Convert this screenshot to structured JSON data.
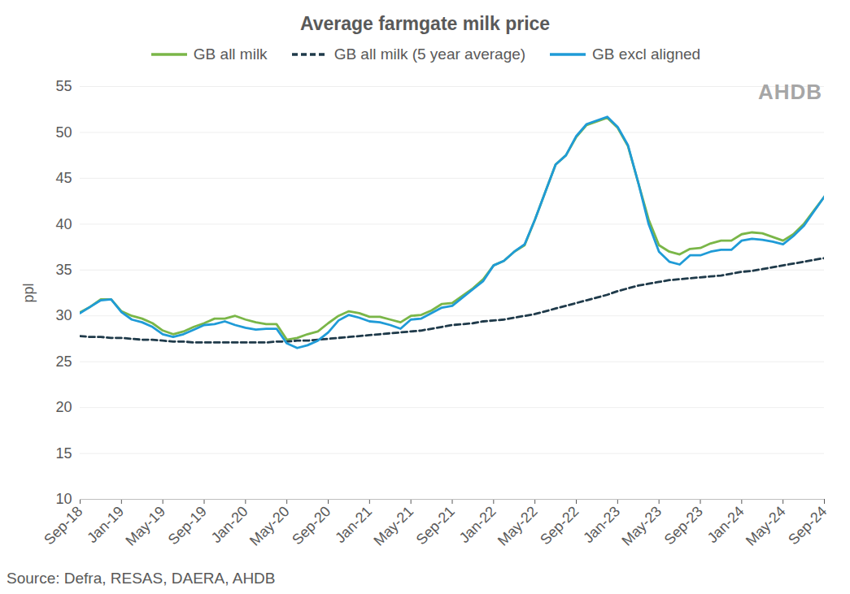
{
  "chart_data": {
    "type": "line",
    "title": "Average farmgate milk price",
    "y_label": "ppl",
    "source": "Source: Defra, RESAS, DAERA, AHDB",
    "annotation": "AHDB",
    "categories": [
      "Sep-18",
      null,
      null,
      null,
      "Jan-19",
      null,
      null,
      null,
      "May-19",
      null,
      null,
      null,
      "Sep-19",
      null,
      null,
      null,
      "Jan-20",
      null,
      null,
      null,
      "May-20",
      null,
      null,
      null,
      "Sep-20",
      null,
      null,
      null,
      "Jan-21",
      null,
      null,
      null,
      "May-21",
      null,
      null,
      null,
      "Sep-21",
      null,
      null,
      null,
      "Jan-22",
      null,
      null,
      null,
      "May-22",
      null,
      null,
      null,
      "Sep-22",
      null,
      null,
      null,
      "Jan-23",
      null,
      null,
      null,
      "May-23",
      null,
      null,
      null,
      "Sep-23",
      null,
      null,
      null,
      "Jan-24",
      null,
      null,
      null,
      "May-24",
      null,
      null,
      null,
      "Sep-24"
    ],
    "series": [
      {
        "name": "GB all milk",
        "color": "#7ab648",
        "line_style": "solid",
        "values": [
          30.4,
          31.0,
          31.8,
          31.8,
          30.5,
          30.0,
          29.7,
          29.2,
          28.4,
          28.0,
          28.3,
          28.8,
          29.2,
          29.7,
          29.7,
          30.0,
          29.6,
          29.3,
          29.1,
          29.1,
          27.4,
          27.6,
          28.0,
          28.3,
          29.2,
          30.0,
          30.5,
          30.3,
          29.9,
          29.9,
          29.6,
          29.3,
          30.0,
          30.1,
          30.6,
          31.3,
          31.4,
          32.2,
          33.0,
          34.0,
          35.5,
          36.0,
          37.0,
          37.7,
          40.5,
          43.5,
          46.5,
          47.5,
          49.5,
          50.8,
          51.2,
          51.6,
          50.5,
          48.5,
          44.5,
          40.5,
          37.7,
          37.0,
          36.7,
          37.3,
          37.4,
          37.9,
          38.2,
          38.2,
          38.9,
          39.1,
          39.0,
          38.6,
          38.2,
          38.9,
          40.0,
          41.5,
          43.0
        ]
      },
      {
        "name": "GB all milk (5 year average)",
        "color": "#1f3a4a",
        "line_style": "dashed",
        "values": [
          27.8,
          27.7,
          27.7,
          27.6,
          27.6,
          27.5,
          27.4,
          27.4,
          27.3,
          27.2,
          27.2,
          27.1,
          27.1,
          27.1,
          27.1,
          27.1,
          27.1,
          27.1,
          27.1,
          27.2,
          27.2,
          27.3,
          27.3,
          27.4,
          27.5,
          27.6,
          27.7,
          27.8,
          27.9,
          28.0,
          28.1,
          28.2,
          28.3,
          28.4,
          28.6,
          28.8,
          29.0,
          29.1,
          29.2,
          29.4,
          29.5,
          29.6,
          29.8,
          30.0,
          30.2,
          30.5,
          30.8,
          31.1,
          31.4,
          31.7,
          32.0,
          32.3,
          32.7,
          33.0,
          33.3,
          33.5,
          33.7,
          33.9,
          34.0,
          34.1,
          34.2,
          34.3,
          34.4,
          34.6,
          34.8,
          34.9,
          35.1,
          35.3,
          35.5,
          35.7,
          35.9,
          36.1,
          36.3
        ]
      },
      {
        "name": "GB excl aligned",
        "color": "#1f9bd7",
        "line_style": "solid",
        "values": [
          30.3,
          31.0,
          31.7,
          31.8,
          30.4,
          29.6,
          29.3,
          28.8,
          28.0,
          27.7,
          28.0,
          28.5,
          29.0,
          29.1,
          29.4,
          29.0,
          28.7,
          28.5,
          28.6,
          28.6,
          27.0,
          26.5,
          26.8,
          27.3,
          28.2,
          29.5,
          30.1,
          29.8,
          29.4,
          29.3,
          29.0,
          28.6,
          29.6,
          29.7,
          30.3,
          30.9,
          31.1,
          32.0,
          32.9,
          33.8,
          35.5,
          36.0,
          37.0,
          37.8,
          40.5,
          43.5,
          46.5,
          47.5,
          49.6,
          50.9,
          51.3,
          51.7,
          50.6,
          48.6,
          44.5,
          40.0,
          37.0,
          35.9,
          35.6,
          36.6,
          36.6,
          37.0,
          37.2,
          37.2,
          38.2,
          38.4,
          38.3,
          38.1,
          37.8,
          38.7,
          39.8,
          41.4,
          43.0
        ]
      }
    ],
    "ylim": [
      10,
      55
    ],
    "yticks": [
      10,
      15,
      20,
      25,
      30,
      35,
      40,
      45,
      50,
      55
    ],
    "grid": true,
    "legend": "top"
  }
}
